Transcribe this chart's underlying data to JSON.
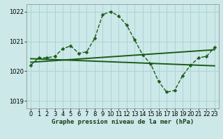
{
  "title": "Graphe pression niveau de la mer (hPa)",
  "bg_color": "#cce8e8",
  "grid_color": "#aad4d4",
  "line_color": "#1a5c1a",
  "xlim": [
    -0.5,
    23.5
  ],
  "ylim": [
    1018.75,
    1022.25
  ],
  "yticks": [
    1019,
    1020,
    1021,
    1022
  ],
  "xticks": [
    0,
    1,
    2,
    3,
    4,
    5,
    6,
    7,
    8,
    9,
    10,
    11,
    12,
    13,
    14,
    15,
    16,
    17,
    18,
    19,
    20,
    21,
    22,
    23
  ],
  "main_x": [
    0,
    1,
    2,
    3,
    4,
    5,
    6,
    7,
    8,
    9,
    10,
    11,
    12,
    13,
    14,
    15,
    16,
    17,
    18,
    19,
    20,
    21,
    22,
    23
  ],
  "main_y": [
    1020.2,
    1020.45,
    1020.45,
    1020.5,
    1020.75,
    1020.85,
    1020.6,
    1020.65,
    1021.1,
    1021.9,
    1022.0,
    1021.85,
    1021.55,
    1021.05,
    1020.55,
    1020.25,
    1019.65,
    1019.3,
    1019.35,
    1019.85,
    1020.2,
    1020.45,
    1020.5,
    1020.8
  ],
  "trend1_x": [
    0,
    23
  ],
  "trend1_y": [
    1020.3,
    1020.72
  ],
  "trend2_x": [
    0,
    23
  ],
  "trend2_y": [
    1020.42,
    1020.18
  ],
  "marker": "D",
  "markersize": 2.5,
  "linewidth": 1.0,
  "trend_linewidth": 1.4,
  "fontsize_label": 6.5,
  "fontsize_tick": 6.0
}
